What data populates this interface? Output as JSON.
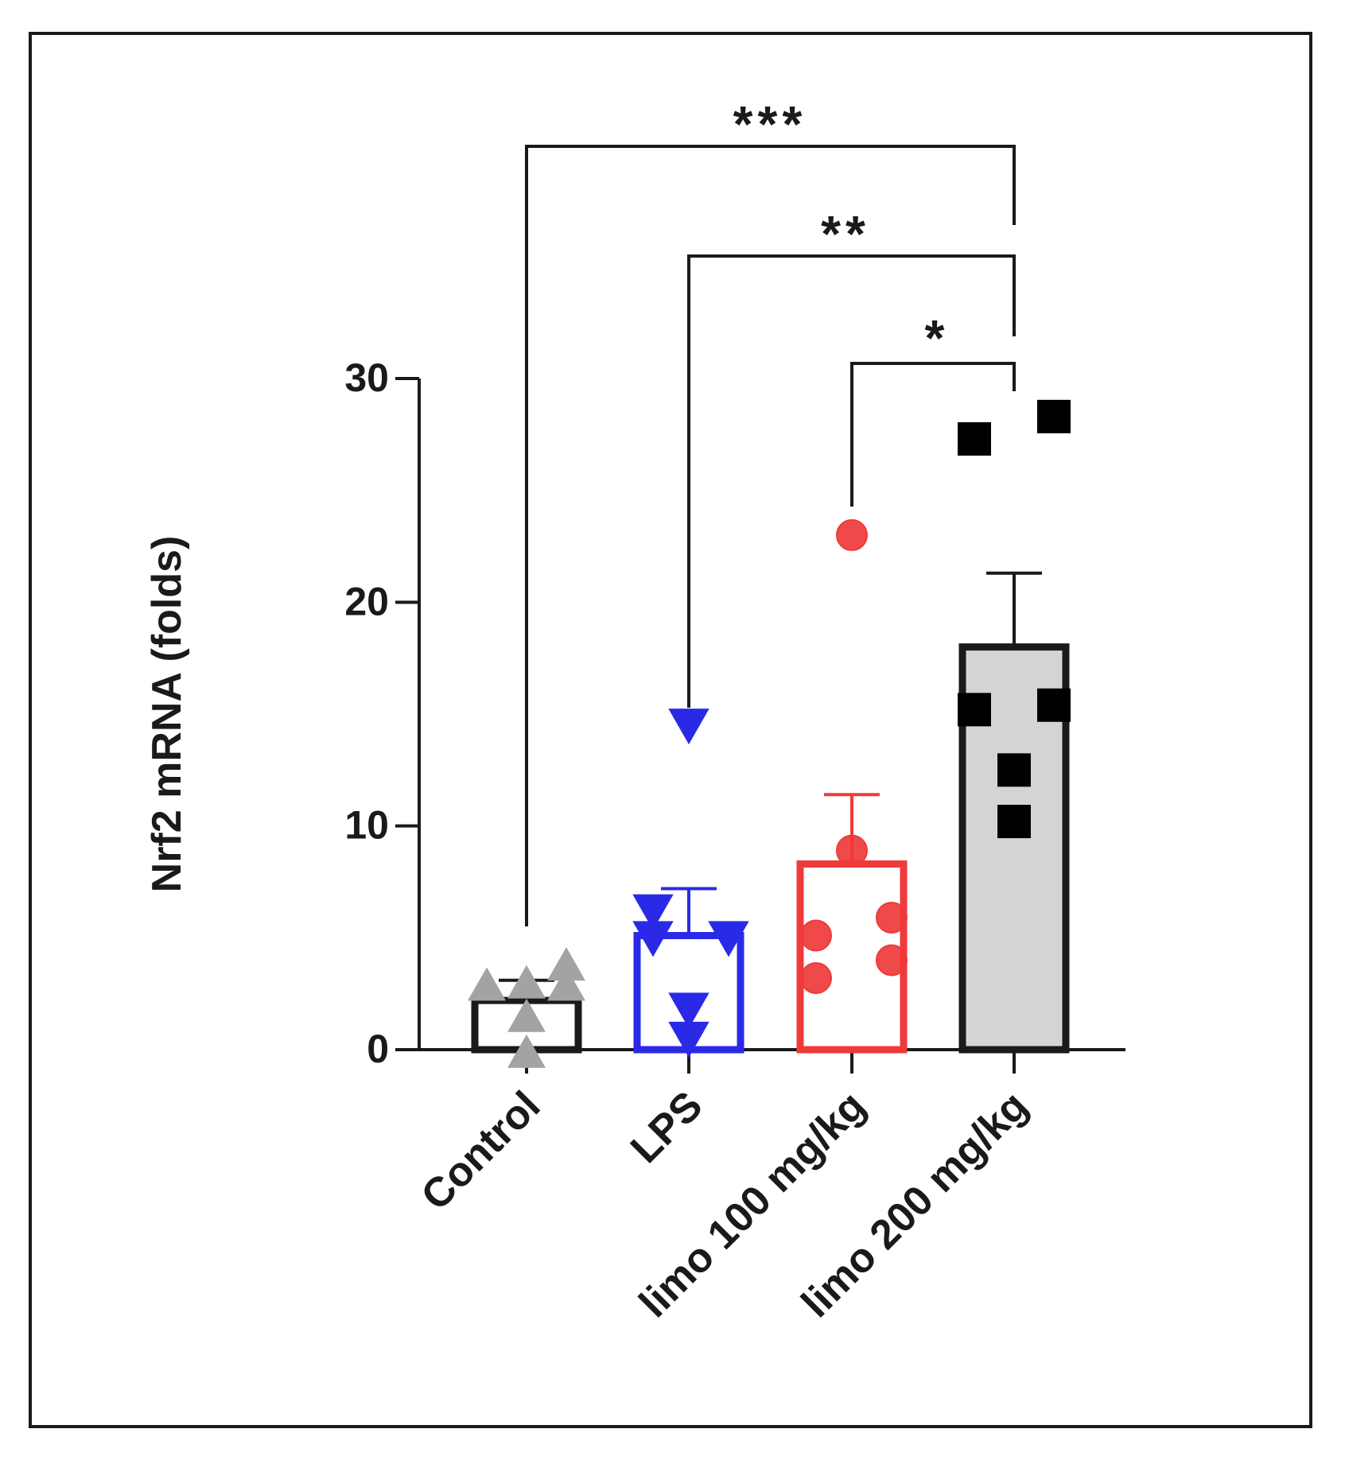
{
  "chart_data": {
    "type": "bar",
    "title": "",
    "xlabel": "",
    "ylabel": "Nrf2 mRNA (folds)",
    "ylim": [
      0,
      30
    ],
    "yticks": [
      0,
      10,
      20,
      30
    ],
    "ytick_labels": [
      "0",
      "10",
      "20",
      "30"
    ],
    "categories": [
      "Control",
      "LPS",
      "limo 100 mg/kg",
      "limo 200 mg/kg"
    ],
    "means": [
      2.2,
      5.1,
      8.3,
      18.0
    ],
    "sem": [
      0.9,
      2.1,
      3.1,
      3.3
    ],
    "bar_colors": [
      "#1a1a1a",
      "#2a2ae6",
      "#ef3a3a",
      "#1a1a1a"
    ],
    "bar_fills": [
      "#ffffff",
      "#ffffff",
      "#ffffff",
      "#d4d4d4"
    ],
    "marker_colors": [
      "#a3a3a3",
      "#2a2ae6",
      "#ef3a3a",
      "#000000"
    ],
    "markers": [
      "triangle-up",
      "triangle-down",
      "circle",
      "square"
    ],
    "points": [
      [
        [
          -0.5,
          2.9
        ],
        [
          0.0,
          3.0
        ],
        [
          0.5,
          3.8
        ],
        [
          0.5,
          2.9
        ],
        [
          0.0,
          1.5
        ],
        [
          0.0,
          -0.1
        ]
      ],
      [
        [
          0.0,
          14.5
        ],
        [
          -0.45,
          6.2
        ],
        [
          -0.45,
          5.0
        ],
        [
          0.5,
          5.0
        ],
        [
          0.0,
          1.8
        ],
        [
          0.0,
          0.5
        ]
      ],
      [
        [
          0.0,
          23.0
        ],
        [
          0.0,
          8.9
        ],
        [
          -0.45,
          5.1
        ],
        [
          0.5,
          5.9
        ],
        [
          0.5,
          4.0
        ],
        [
          -0.45,
          3.2
        ]
      ],
      [
        [
          -0.5,
          27.3
        ],
        [
          0.5,
          28.3
        ],
        [
          -0.5,
          15.2
        ],
        [
          0.5,
          15.4
        ],
        [
          0.0,
          12.5
        ],
        [
          0.0,
          10.2
        ]
      ]
    ],
    "significance": [
      {
        "from": "Control",
        "to": "limo 200 mg/kg",
        "label": "***"
      },
      {
        "from": "LPS",
        "to": "limo 200 mg/kg",
        "label": "**"
      },
      {
        "from": "limo 100 mg/kg",
        "to": "limo 200 mg/kg",
        "label": "*"
      }
    ]
  }
}
